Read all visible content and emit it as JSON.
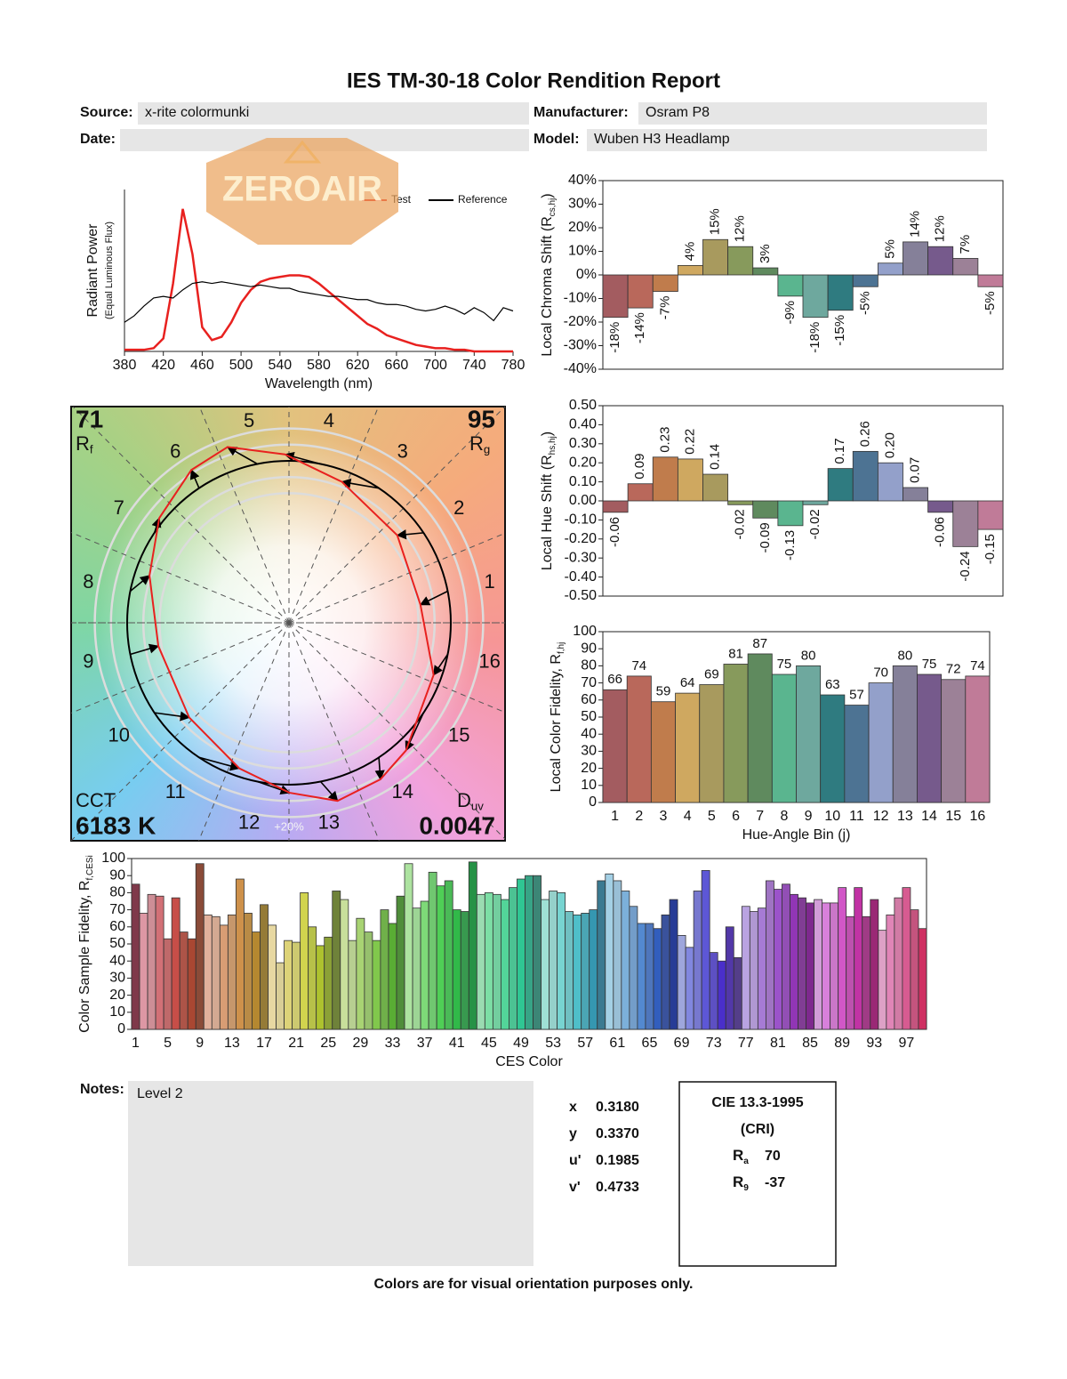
{
  "header": {
    "title": "IES TM-30-18 Color Rendition Report",
    "fields": [
      {
        "label": "Source:",
        "value": "x-rite colormunki"
      },
      {
        "label": "Manufacturer:",
        "value": "Osram P8"
      },
      {
        "label": "Date:"
      },
      {
        "label": "Model:",
        "value": "Wuben H3 Headlamp"
      }
    ],
    "watermark": "ZEROAIR"
  },
  "chart_data": [
    {
      "type": "line",
      "xlabel": "Wavelength (nm)",
      "ylabel": "Radiant Power",
      "ylabel_note": "(Equal Luminous Flux)",
      "x": [
        380,
        390,
        400,
        410,
        420,
        430,
        440,
        450,
        460,
        470,
        480,
        490,
        500,
        510,
        520,
        530,
        540,
        550,
        560,
        570,
        580,
        590,
        600,
        610,
        620,
        630,
        640,
        650,
        660,
        670,
        680,
        690,
        700,
        710,
        720,
        730,
        740,
        750,
        760,
        770,
        780
      ],
      "series": [
        {
          "name": "Test",
          "color": "#e8211f",
          "values": [
            0.01,
            0.01,
            0.01,
            0.02,
            0.08,
            0.42,
            0.88,
            0.6,
            0.15,
            0.07,
            0.09,
            0.18,
            0.3,
            0.38,
            0.43,
            0.45,
            0.46,
            0.47,
            0.47,
            0.46,
            0.42,
            0.37,
            0.32,
            0.27,
            0.22,
            0.17,
            0.14,
            0.1,
            0.08,
            0.06,
            0.04,
            0.03,
            0.02,
            0.02,
            0.01,
            0.01,
            0,
            0,
            0,
            0,
            0
          ]
        },
        {
          "name": "Reference",
          "color": "#000000",
          "values": [
            0.18,
            0.22,
            0.28,
            0.33,
            0.34,
            0.33,
            0.38,
            0.42,
            0.43,
            0.42,
            0.43,
            0.42,
            0.41,
            0.4,
            0.41,
            0.4,
            0.39,
            0.39,
            0.37,
            0.36,
            0.35,
            0.34,
            0.34,
            0.33,
            0.32,
            0.32,
            0.3,
            0.29,
            0.29,
            0.28,
            0.26,
            0.25,
            0.26,
            0.28,
            0.26,
            0.23,
            0.27,
            0.24,
            0.19,
            0.27,
            0.25
          ]
        }
      ],
      "xlim": [
        380,
        780
      ],
      "xticks": [
        380,
        420,
        460,
        500,
        540,
        580,
        620,
        660,
        700,
        740,
        780
      ],
      "ylim": [
        0,
        1
      ],
      "legend": "upper right"
    },
    {
      "type": "bar",
      "ylabel": "Local Chroma Shift (R",
      "ylabel_sub": "cs,hj",
      "ylabel_end": ")",
      "values": [
        -18,
        -14,
        -7,
        4,
        15,
        12,
        3,
        -9,
        -18,
        -15,
        -5,
        5,
        14,
        12,
        7,
        -5
      ],
      "value_labels": [
        "-18%",
        "-14%",
        "-7%",
        "4%",
        "15%",
        "12%",
        "3%",
        "-9%",
        "-18%",
        "-15%",
        "-5%",
        "5%",
        "14%",
        "12%",
        "7%",
        "-5%"
      ],
      "colors": [
        "#a35c60",
        "#b9685b",
        "#c07c4c",
        "#cfa860",
        "#a89a5e",
        "#879a5c",
        "#5f8a5e",
        "#5ab58f",
        "#6ea89e",
        "#2f7b80",
        "#4d7393",
        "#93a0ca",
        "#858099",
        "#765a8c",
        "#9c8197",
        "#c07b98"
      ],
      "ylim": [
        -40,
        40
      ],
      "yticks": [
        {
          "value": -40,
          "label": "-40%"
        },
        {
          "value": -30,
          "label": "-30%"
        },
        {
          "value": -20,
          "label": "-20%"
        },
        {
          "value": -10,
          "label": "-10%"
        },
        {
          "value": 0,
          "label": "0%"
        },
        {
          "value": 10,
          "label": "10%"
        },
        {
          "value": 20,
          "label": "20%"
        },
        {
          "value": 30,
          "label": "30%"
        },
        {
          "value": 40,
          "label": "40%"
        }
      ]
    },
    {
      "type": "bar",
      "ylabel": "Local Hue Shift (R",
      "ylabel_sub": "hs,hj",
      "ylabel_end": ")",
      "values": [
        -0.06,
        0.09,
        0.23,
        0.22,
        0.14,
        -0.02,
        -0.09,
        -0.13,
        -0.02,
        0.17,
        0.26,
        0.2,
        0.07,
        -0.06,
        -0.24,
        -0.15
      ],
      "value_labels": [
        "-0.06",
        "0.09",
        "0.23",
        "0.22",
        "0.14",
        "-0.02",
        "-0.09",
        "-0.13",
        "-0.02",
        "0.17",
        "0.26",
        "0.20",
        "0.07",
        "-0.06",
        "-0.24",
        "-0.15"
      ],
      "colors": [
        "#a35c60",
        "#b9685b",
        "#c07c4c",
        "#cfa860",
        "#a89a5e",
        "#879a5c",
        "#5f8a5e",
        "#5ab58f",
        "#6ea89e",
        "#2f7b80",
        "#4d7393",
        "#93a0ca",
        "#858099",
        "#765a8c",
        "#9c8197",
        "#c07b98"
      ],
      "ylim": [
        -0.5,
        0.5
      ],
      "yticks": [
        {
          "value": -0.5,
          "label": "-0.50"
        },
        {
          "value": -0.4,
          "label": "-0.40"
        },
        {
          "value": -0.3,
          "label": "-0.30"
        },
        {
          "value": -0.2,
          "label": "-0.20"
        },
        {
          "value": -0.1,
          "label": "-0.10"
        },
        {
          "value": 0,
          "label": "0.00"
        },
        {
          "value": 0.1,
          "label": "0.10"
        },
        {
          "value": 0.2,
          "label": "0.20"
        },
        {
          "value": 0.3,
          "label": "0.30"
        },
        {
          "value": 0.4,
          "label": "0.40"
        },
        {
          "value": 0.5,
          "label": "0.50"
        }
      ]
    },
    {
      "type": "bar",
      "ylabel": "Local Color Fidelity, R",
      "ylabel_sub": "f,hj",
      "xlabel": "Hue-Angle Bin (j)",
      "categories": [
        1,
        2,
        3,
        4,
        5,
        6,
        7,
        8,
        9,
        10,
        11,
        12,
        13,
        14,
        15,
        16
      ],
      "values": [
        66,
        74,
        59,
        64,
        69,
        81,
        87,
        75,
        80,
        63,
        57,
        70,
        80,
        75,
        72,
        74
      ],
      "colors": [
        "#a35c60",
        "#b9685b",
        "#c07c4c",
        "#cfa860",
        "#a89a5e",
        "#879a5c",
        "#5f8a5e",
        "#5ab58f",
        "#6ea89e",
        "#2f7b80",
        "#4d7393",
        "#93a0ca",
        "#858099",
        "#765a8c",
        "#9c8197",
        "#c07b98"
      ],
      "ylim": [
        0,
        100
      ],
      "yticks": [
        0,
        10,
        20,
        30,
        40,
        50,
        60,
        70,
        80,
        90,
        100
      ]
    },
    {
      "type": "bar",
      "ylabel": "Color Sample Fidelity, R",
      "ylabel_sub": "f,CESi",
      "xlabel": "CES Color",
      "categories": [
        1,
        null,
        null,
        null,
        5,
        null,
        null,
        null,
        9,
        null,
        null,
        null,
        13,
        null,
        null,
        null,
        17,
        null,
        null,
        null,
        21,
        null,
        null,
        null,
        25,
        null,
        null,
        null,
        29,
        null,
        null,
        null,
        33,
        null,
        null,
        null,
        37,
        null,
        null,
        null,
        41,
        null,
        null,
        null,
        45,
        null,
        null,
        null,
        49,
        null,
        null,
        null,
        53,
        null,
        null,
        null,
        57,
        null,
        null,
        null,
        61,
        null,
        null,
        null,
        65,
        null,
        null,
        null,
        69,
        null,
        null,
        null,
        73,
        null,
        null,
        null,
        77,
        null,
        null,
        null,
        81,
        null,
        null,
        null,
        85,
        null,
        null,
        null,
        89,
        null,
        null,
        null,
        93,
        null,
        null,
        null,
        97,
        null,
        null
      ],
      "values": [
        85,
        68,
        79,
        78,
        53,
        77,
        57,
        53,
        97,
        67,
        66,
        61,
        67,
        88,
        68,
        57,
        73,
        61,
        39,
        52,
        51,
        80,
        60,
        49,
        54,
        81,
        76,
        52,
        65,
        57,
        52,
        70,
        62,
        78,
        97,
        71,
        75,
        92,
        84,
        87,
        70,
        69,
        98,
        79,
        80,
        79,
        76,
        83,
        88,
        90,
        90,
        76,
        81,
        80,
        69,
        67,
        68,
        70,
        87,
        91,
        87,
        81,
        72,
        62,
        62,
        59,
        67,
        76,
        55,
        48,
        81,
        93,
        45,
        40,
        60,
        42,
        72,
        69,
        71,
        87,
        82,
        85,
        79,
        77,
        74,
        76,
        74,
        74,
        83,
        66,
        83,
        66,
        76,
        58,
        67,
        77,
        83,
        70,
        59
      ],
      "ylim": [
        0,
        100
      ],
      "yticks": [
        0,
        10,
        20,
        30,
        40,
        50,
        60,
        70,
        80,
        90,
        100
      ]
    },
    {
      "type": "vector",
      "bins": [
        1,
        2,
        3,
        4,
        5,
        6,
        7,
        8,
        9,
        10,
        11,
        12,
        13,
        14,
        15,
        16
      ],
      "rf": 71,
      "rf_label": {
        "symbol": "R",
        "sub": "f"
      },
      "rg": 95,
      "rg_label": {
        "symbol": "R",
        "sub": "g"
      },
      "cct_label": "CCT",
      "cct": "6183 K",
      "duv_label": {
        "symbol": "D",
        "sub": "uv"
      },
      "duv": 0.0047,
      "scale_label": "+20%",
      "test_color": "#e8211f",
      "reference_color": "#000000"
    }
  ],
  "chromaticity": [
    {
      "label": "x",
      "value": "0.3180"
    },
    {
      "label": "y",
      "value": "0.3370"
    },
    {
      "label": "u'",
      "value": "0.1985"
    },
    {
      "label": "v'",
      "value": "0.4733"
    }
  ],
  "cri": {
    "title": "CIE 13.3-1995",
    "subtitle": "(CRI)",
    "ra": {
      "symbol": "R",
      "sub": "a",
      "value": 70
    },
    "r9": {
      "symbol": "R",
      "sub": "9",
      "value": -37
    }
  },
  "notes": {
    "label": "Notes:",
    "text": "Level 2"
  },
  "footer": "Colors are for visual orientation purposes only."
}
